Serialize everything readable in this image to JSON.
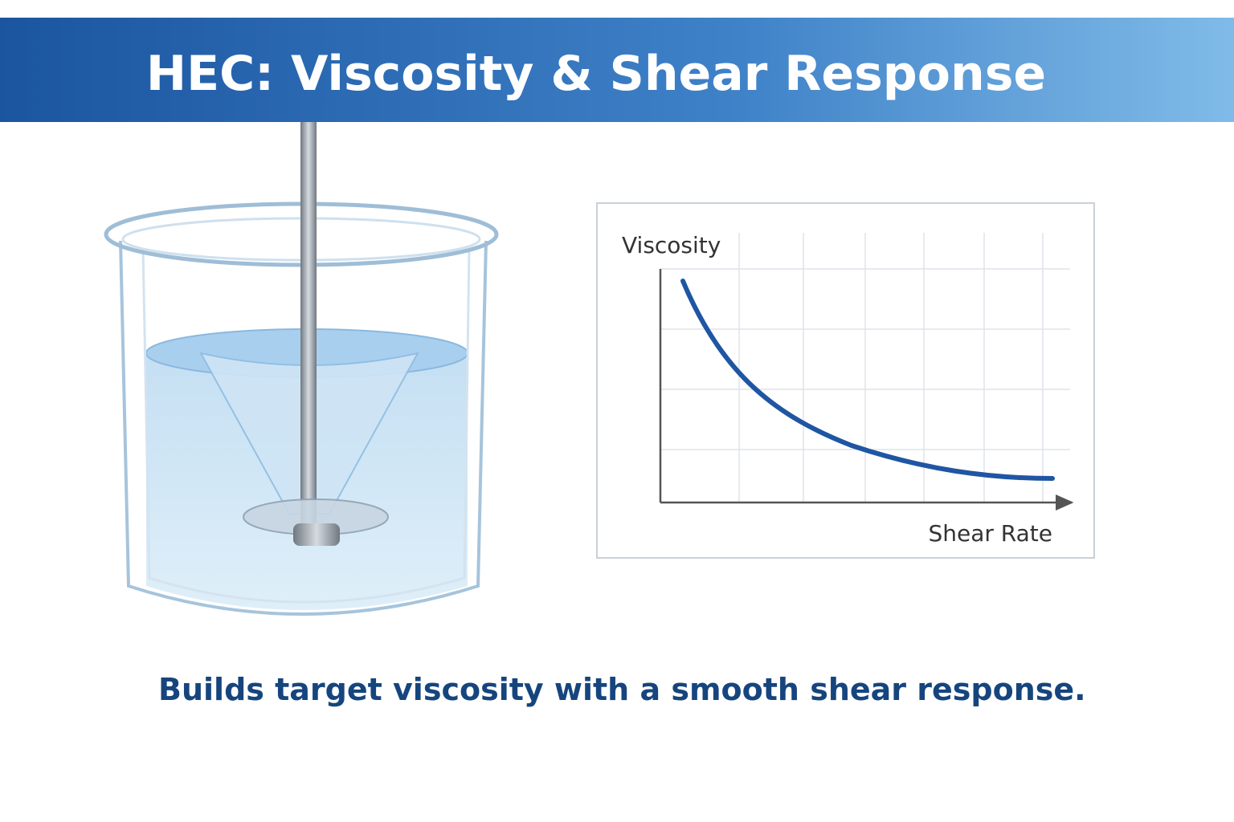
{
  "header": {
    "title": "HEC: Viscosity & Shear Response"
  },
  "chart": {
    "y_label": "Viscosity",
    "x_label": "Shear Rate"
  },
  "caption": "Builds target viscosity with a smooth shear response."
}
